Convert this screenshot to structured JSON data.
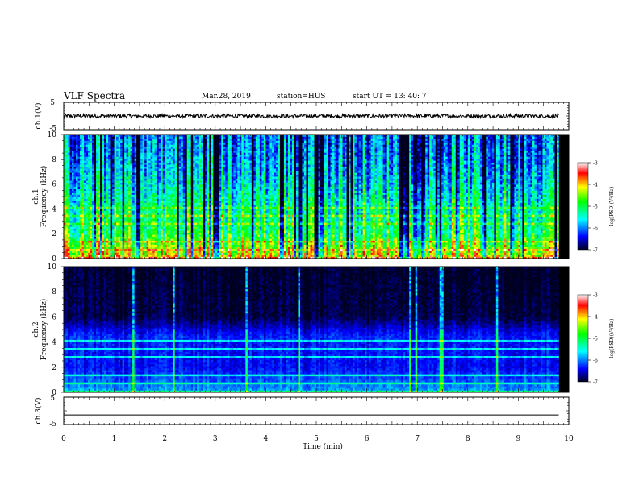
{
  "header": {
    "title": "VLF Spectra",
    "date": "Mar.28, 2019",
    "station": "station=HUS",
    "start_ut": "start  UT =  13: 40: 7"
  },
  "chart_data": [
    {
      "type": "line",
      "panel": "ch1-waveform",
      "ylabel": "ch.1(V)",
      "ylim": [
        -5,
        5
      ],
      "yticks": [
        "5",
        "-5"
      ],
      "series": [
        {
          "values_description_level": 0,
          "x": [
            0,
            9.8
          ],
          "y": [
            0,
            0
          ]
        }
      ]
    },
    {
      "type": "heatmap",
      "panel": "ch1-spectrogram",
      "ylabel": "ch.1\nFrequency (kHz)",
      "ylim": [
        0,
        10
      ],
      "yticks": [
        "0",
        "2",
        "4",
        "6",
        "8",
        "10"
      ],
      "xlim": [
        0,
        10
      ],
      "data_extent_min": 9.8,
      "colorbar": {
        "label": "log(PSD)(V²/Hz)",
        "range": [
          -7,
          -3
        ],
        "ticks": [
          "-3",
          "-4",
          "-5",
          "-6",
          "-7"
        ]
      },
      "mean_level_by_freq_kHz": [
        [
          0.5,
          -4.2
        ],
        [
          2,
          -5.0
        ],
        [
          4,
          -5.2
        ],
        [
          6,
          -5.6
        ],
        [
          8,
          -5.9
        ],
        [
          10,
          -6.0
        ]
      ]
    },
    {
      "type": "heatmap",
      "panel": "ch2-spectrogram",
      "ylabel": "ch.2\nFrequency (kHz)",
      "ylim": [
        0,
        10
      ],
      "yticks": [
        "0",
        "2",
        "4",
        "6",
        "8",
        "10"
      ],
      "xlim": [
        0,
        10
      ],
      "data_extent_min": 9.8,
      "colorbar": {
        "label": "log(PSD)(V²/Hz)",
        "range": [
          -7,
          -3
        ],
        "ticks": [
          "-3",
          "-4",
          "-5",
          "-6",
          "-7"
        ]
      },
      "mean_level_by_freq_kHz": [
        [
          0.5,
          -6.0
        ],
        [
          2,
          -6.4
        ],
        [
          4.5,
          -6.3
        ],
        [
          6,
          -6.9
        ],
        [
          8,
          -6.95
        ],
        [
          10,
          -7.0
        ]
      ]
    },
    {
      "type": "line",
      "panel": "ch3-waveform",
      "ylabel": "ch.3(V)",
      "ylim": [
        -5,
        5
      ],
      "yticks": [
        "5",
        "-5"
      ],
      "xlabel": "Time (min)",
      "xticks": [
        "0",
        "1",
        "2",
        "3",
        "4",
        "5",
        "6",
        "7",
        "8",
        "9",
        "10"
      ],
      "series": [
        {
          "x": [
            0,
            9.8
          ],
          "y": [
            -1.5,
            -1.5
          ]
        }
      ]
    }
  ],
  "colors": {
    "background": "#000000",
    "axes": "#000000",
    "colormap": [
      "#0000ff",
      "#00ffff",
      "#00ff00",
      "#ffff00",
      "#ff0000",
      "#ffffff"
    ]
  }
}
